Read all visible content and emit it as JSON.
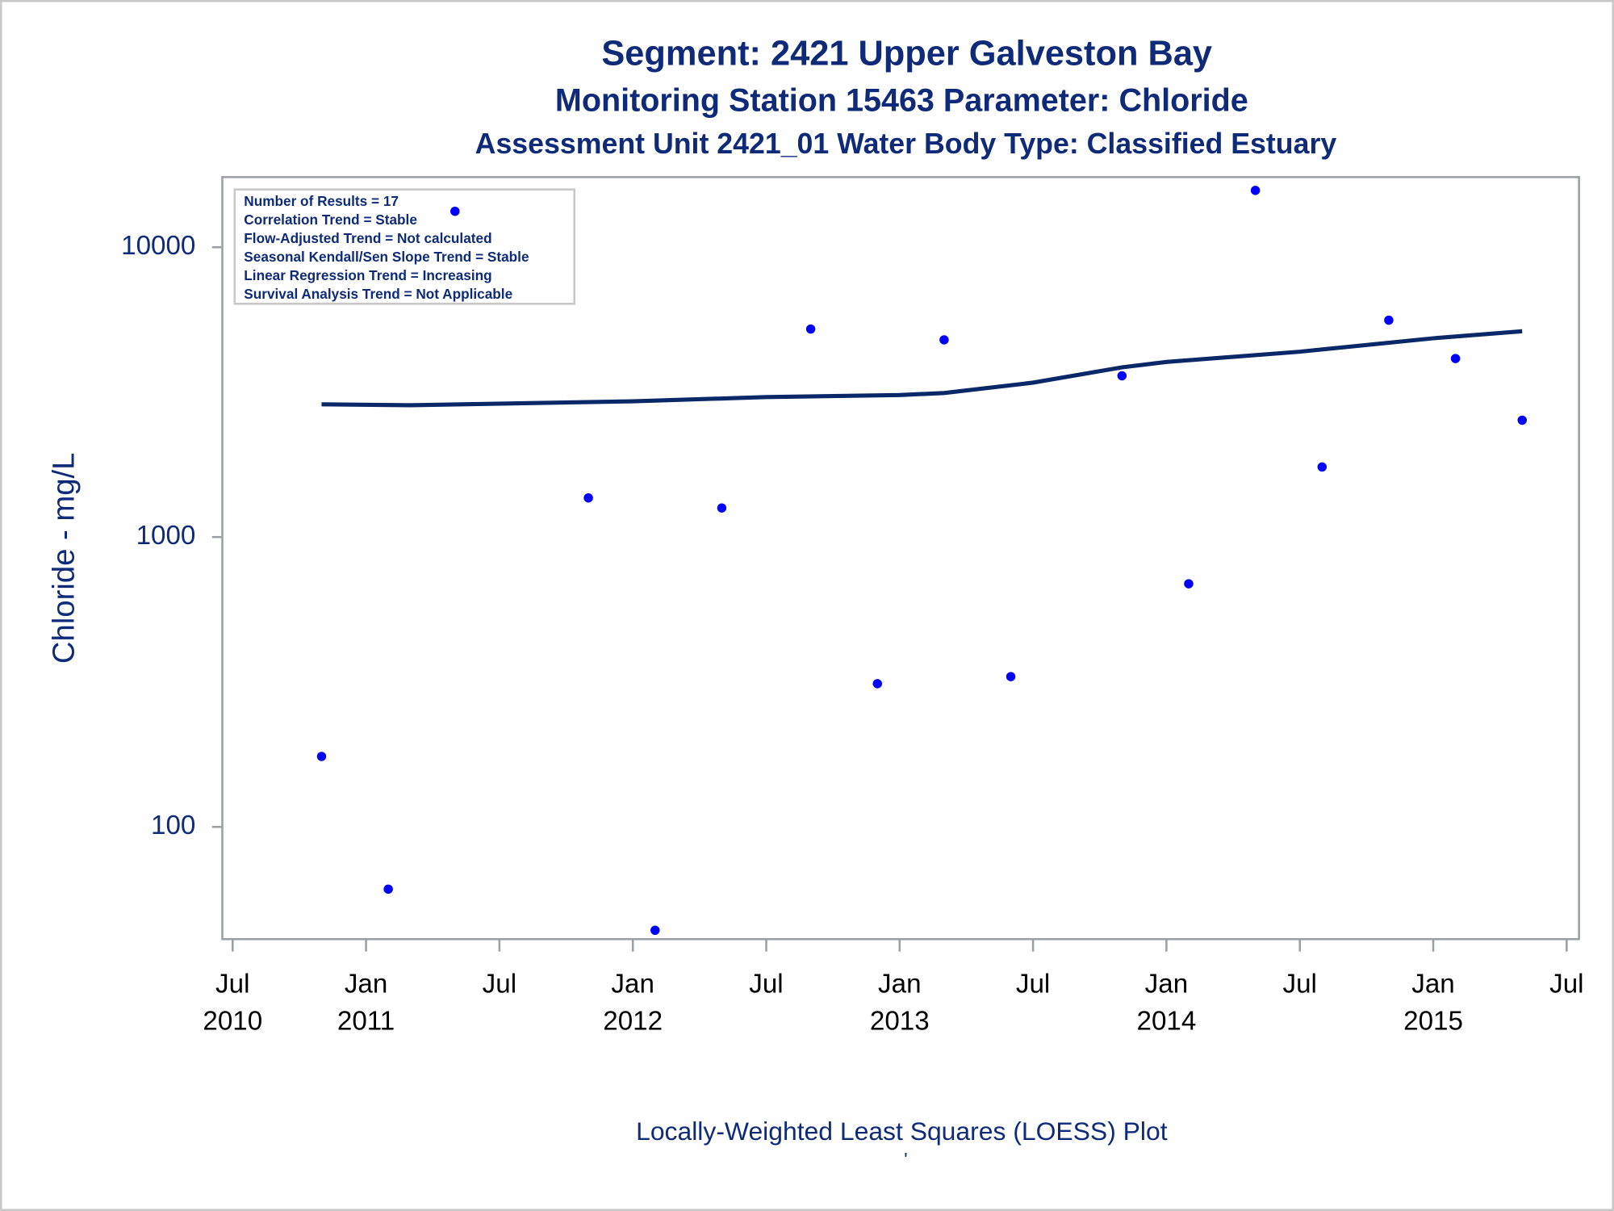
{
  "chart_data": {
    "type": "scatter",
    "title": "Segment: 2421  Upper Galveston Bay",
    "subtitle": "Monitoring Station 15463 Parameter: Chloride",
    "subtitle2": "Assessment Unit 2421_01   Water Body Type: Classified Estuary",
    "y_label": "Chloride - mg/L",
    "footnote": "Locally-Weighted Least Squares (LOESS) Plot",
    "footnote2": "'",
    "annotations": [
      "Number of Results = 17",
      "Correlation Trend = Stable",
      "Flow-Adjusted Trend = Not calculated",
      "Seasonal Kendall/Sen Slope Trend = Stable",
      "Linear Regression Trend = Increasing",
      "Survival Analysis Trend = Not Applicable"
    ],
    "log_scale": true,
    "ylim": [
      41,
      17450
    ],
    "yticks": [
      100,
      1000,
      10000
    ],
    "xlim": [
      "2010-07",
      "2015-07"
    ],
    "xticks": [
      {
        "value": "2010-07",
        "label": "Jul 2010"
      },
      {
        "value": "2011-01",
        "label": "Jan 2011"
      },
      {
        "value": "2011-07",
        "label": "Jul"
      },
      {
        "value": "2012-01",
        "label": "Jan 2012"
      },
      {
        "value": "2012-07",
        "label": "Jul"
      },
      {
        "value": "2013-01",
        "label": "Jan 2013"
      },
      {
        "value": "2013-07",
        "label": "Jul"
      },
      {
        "value": "2014-01",
        "label": "Jan 2014"
      },
      {
        "value": "2014-07",
        "label": "Jul"
      },
      {
        "value": "2015-01",
        "label": "Jan 2015"
      },
      {
        "value": "2015-07",
        "label": "Jul"
      }
    ],
    "series": [
      {
        "type": "scatter",
        "color": "#0000ff",
        "x": [
          "2010-11",
          "2011-02",
          "2011-05",
          "2011-11",
          "2012-02",
          "2012-05",
          "2012-09",
          "2012-12",
          "2013-03",
          "2013-06",
          "2013-11",
          "2014-02",
          "2014-05",
          "2014-08",
          "2014-11",
          "2015-02",
          "2015-05"
        ],
        "values": [
          175,
          61,
          13300,
          1365,
          44,
          1260,
          5220,
          312,
          4790,
          330,
          3600,
          690,
          15700,
          1745,
          5600,
          4130,
          2530
        ]
      },
      {
        "type": "line",
        "color": "#0a2868",
        "x": [
          "2010-11",
          "2011-03",
          "2012-01",
          "2012-07",
          "2013-01",
          "2013-03",
          "2013-07",
          "2013-11",
          "2014-01",
          "2014-07",
          "2015-01",
          "2015-05"
        ],
        "values": [
          2870,
          2850,
          2940,
          3040,
          3090,
          3140,
          3410,
          3850,
          4020,
          4360,
          4850,
          5130
        ]
      }
    ]
  }
}
